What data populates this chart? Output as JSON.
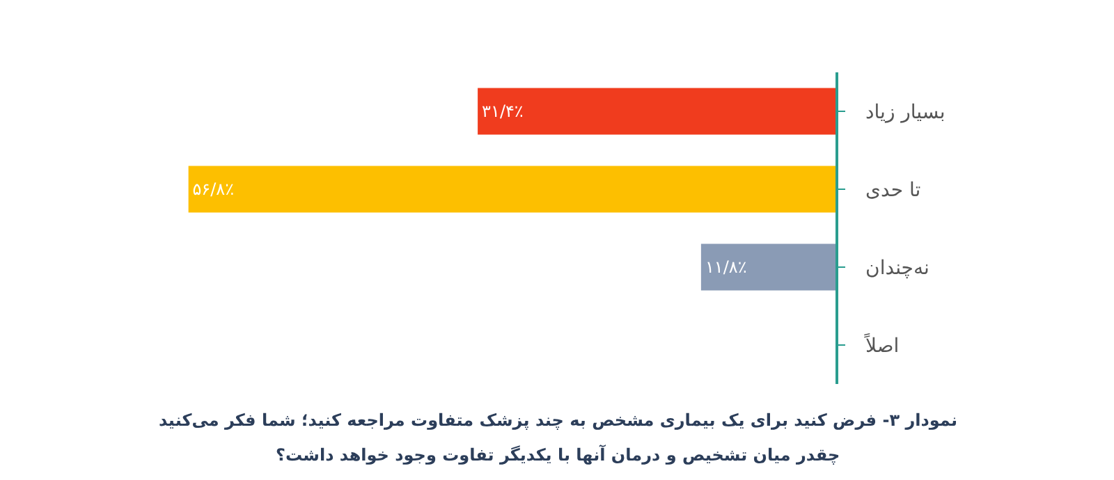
{
  "chart_data": {
    "type": "bar",
    "orientation": "horizontal",
    "categories": [
      "بسیار زیاد",
      "تا حدی",
      "نه‌چندان",
      "اصلاً"
    ],
    "values": [
      31.4,
      56.8,
      11.8,
      null
    ],
    "value_labels": [
      "۳۱/۴٪",
      "۵۶/۸٪",
      "۱۱/۸٪",
      null
    ],
    "colors": [
      "#f03c1e",
      "#fdbf00",
      "#8a9bb5",
      "#8a9bb5"
    ],
    "annotations": [
      "نمودار ۳- فرض کنید برای یک بیماری مشخص به چند پزشک متفاوت مراجعه کنید؛ شما فکر می‌کنید",
      "چقدر میان تشخیص و درمان آنها با یکدیگر تفاوت وجود خواهد داشت؟"
    ],
    "legend": false
  }
}
